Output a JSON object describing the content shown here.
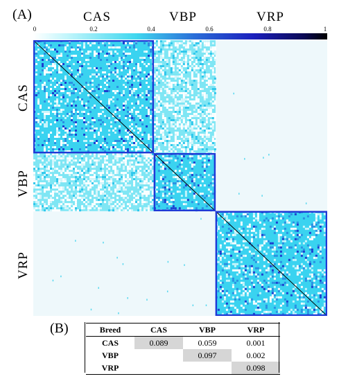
{
  "panel_a_label": "(A)",
  "panel_b_label": "(B)",
  "chart_data": [
    {
      "type": "heatmap",
      "groups": [
        "CAS",
        "VBP",
        "VRP"
      ],
      "group_fraction": [
        0.41,
        0.21,
        0.38
      ],
      "colorbar": {
        "ticks": [
          "0",
          "0.2",
          "0.4",
          "0.6",
          "0.8",
          "1"
        ],
        "range": [
          0,
          1
        ],
        "colors": [
          "#ffffff",
          "#3fd7ef",
          "#1b1fbd",
          "#000000"
        ]
      },
      "colors": {
        "within_group": "#3ad3f0",
        "between_low": "#eef8fb",
        "group_box": "#1f3ad6",
        "diagonal": "#000000"
      }
    },
    {
      "type": "table",
      "headers": [
        "Breed",
        "CAS",
        "VBP",
        "VRP"
      ],
      "rows": [
        [
          "CAS",
          "0.089",
          "0.059",
          "0.001"
        ],
        [
          "VBP",
          "",
          "0.097",
          "0.002"
        ],
        [
          "VRP",
          "",
          "",
          "0.098"
        ]
      ]
    }
  ]
}
